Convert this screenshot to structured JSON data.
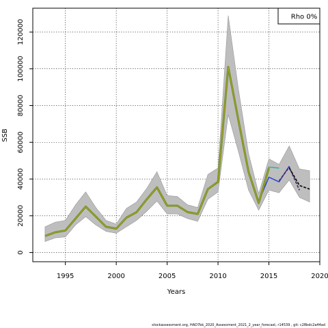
{
  "chart_data": {
    "type": "line",
    "title": "",
    "xlabel": "Years",
    "ylabel": "SSB",
    "xlim": [
      1991.8,
      2020
    ],
    "ylim": [
      -5000,
      133000
    ],
    "xticks": [
      1995,
      2000,
      2005,
      2010,
      2015,
      2020
    ],
    "yticks": [
      0,
      20000,
      40000,
      60000,
      80000,
      100000,
      120000
    ],
    "grid": true,
    "legend": {
      "placement": "top-right",
      "text": "Rho 0%"
    },
    "colors": {
      "band": "#bebebe",
      "band_edge": "#969696",
      "main": "#6b8e23",
      "main_overlay": "#b5a22a",
      "peel_teal": "#2ab7a9",
      "peel_blue": "#2c4bd6",
      "peel_purple": "#4b2c6e",
      "peel_black": "#111111"
    },
    "band": {
      "x": [
        1993,
        1994,
        1995,
        1996,
        1997,
        1998,
        1999,
        2000,
        2001,
        2002,
        2003,
        2004,
        2005,
        2006,
        2007,
        2008,
        2009,
        2010,
        2011,
        2012,
        2013,
        2014,
        2015,
        2016,
        2017,
        2018,
        2019
      ],
      "upper": [
        14000,
        16500,
        17500,
        26000,
        33000,
        24500,
        17500,
        15500,
        24000,
        27500,
        35000,
        44000,
        31000,
        30500,
        26000,
        24500,
        42500,
        46000,
        129000,
        89000,
        54000,
        32000,
        51000,
        48000,
        58000,
        45500,
        44500
      ],
      "lower": [
        6000,
        8000,
        8500,
        15000,
        19500,
        15000,
        11500,
        10500,
        14000,
        17500,
        22500,
        28000,
        21000,
        21000,
        18500,
        17000,
        29000,
        33000,
        75000,
        55000,
        34000,
        23000,
        34000,
        32500,
        39500,
        30000,
        27500
      ]
    },
    "series": [
      {
        "x": [
          1993,
          1994,
          1995,
          1996,
          1997,
          1998,
          1999,
          2000,
          2001,
          2002,
          2003,
          2004,
          2005,
          2006,
          2007,
          2008,
          2009,
          2010,
          2011,
          2012,
          2013,
          2014,
          2015
        ],
        "values": [
          9000,
          11000,
          12000,
          18500,
          25000,
          19500,
          14000,
          13000,
          19000,
          22000,
          29000,
          35500,
          25500,
          25500,
          22000,
          21000,
          34500,
          38500,
          101000,
          72000,
          44000,
          27000,
          46000
        ]
      },
      {
        "x": [
          2014,
          2015,
          2016
        ],
        "values": [
          27500,
          46500,
          46000
        ]
      },
      {
        "x": [
          2014,
          2015,
          2016,
          2017
        ],
        "values": [
          28000,
          41000,
          38500,
          47000
        ]
      },
      {
        "x": [
          2016,
          2017,
          2018
        ],
        "values": [
          39000,
          46500,
          34000
        ]
      },
      {
        "x": [
          2017,
          2018,
          2019
        ],
        "values": [
          46000,
          36500,
          34500
        ]
      }
    ]
  },
  "footer": "stockassessment.org, HAD7bk_2020_Assessment_2021_2_year_forecast, r14539 , git: c28bdc2a44ad"
}
